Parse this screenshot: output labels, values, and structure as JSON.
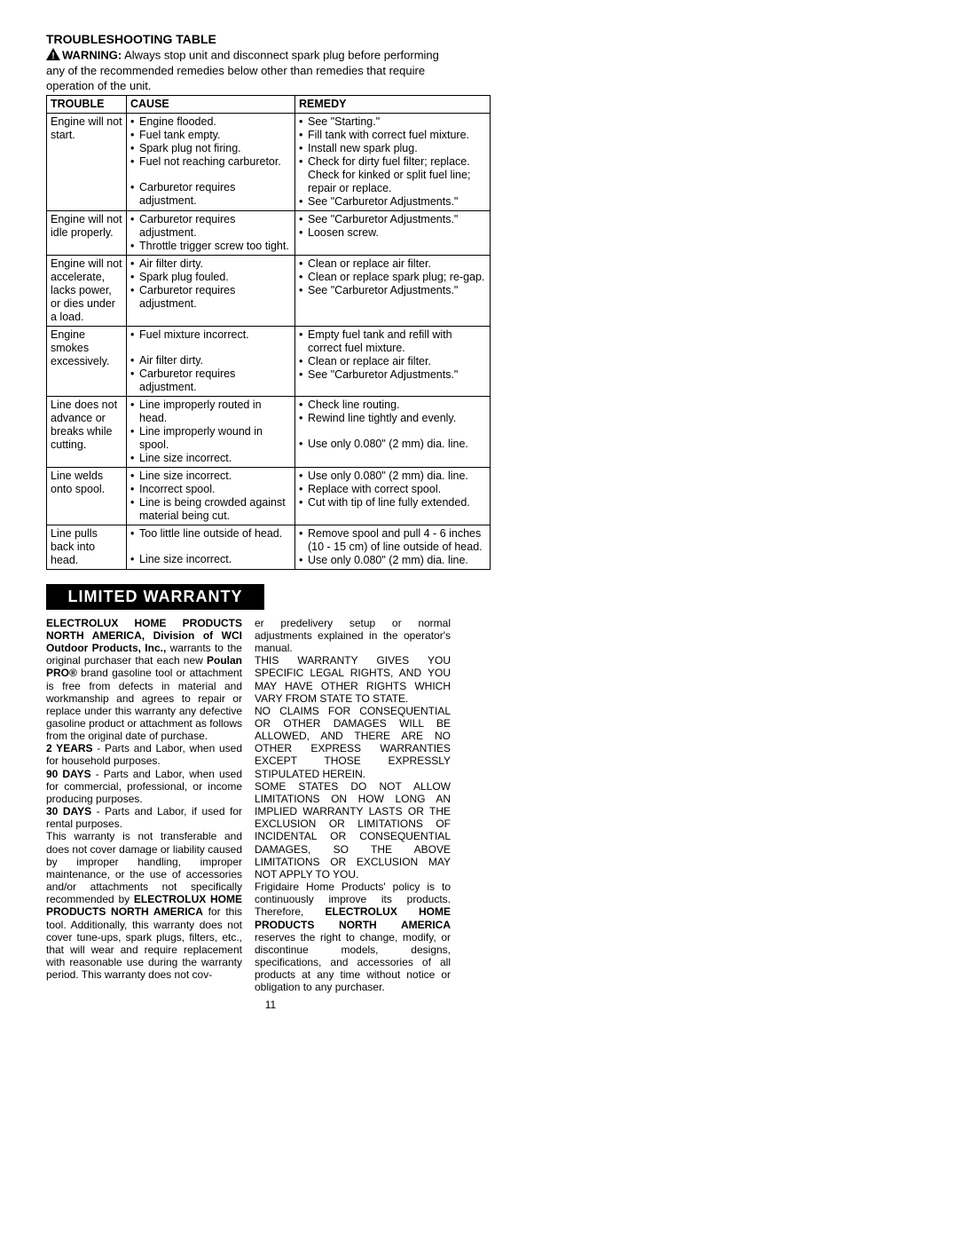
{
  "troubleshoot": {
    "title": "TROUBLESHOOTING TABLE",
    "warning_label": "WARNING:",
    "warning_text": "Always stop unit and disconnect spark plug before performing any of the recommended remedies below other than remedies that require operation of the unit.",
    "headers": {
      "trouble": "TROUBLE",
      "cause": "CAUSE",
      "remedy": "REMEDY"
    },
    "rows": [
      {
        "trouble": "Engine will not start.",
        "cause": [
          "Engine flooded.",
          "Fuel tank empty.",
          "Spark plug not firing.",
          "Fuel not reaching carburetor.",
          "Carburetor requires adjustment."
        ],
        "cause_spacer_after": 3,
        "remedy": [
          "See \"Starting.\"",
          "Fill tank with correct fuel mixture.",
          "Install new spark plug.",
          "Check for dirty fuel filter; replace. Check for kinked or split fuel line; repair or replace.",
          "See \"Carburetor Adjustments.\""
        ]
      },
      {
        "trouble": "Engine will not idle properly.",
        "cause": [
          "Carburetor requires adjustment.",
          "Throttle trigger screw too tight."
        ],
        "remedy": [
          "See \"Carburetor Adjustments.\"",
          "Loosen screw."
        ]
      },
      {
        "trouble": "Engine will not accelerate, lacks power, or dies under a load.",
        "cause": [
          "Air filter dirty.",
          "Spark plug fouled.",
          "Carburetor requires adjustment."
        ],
        "remedy": [
          "Clean or replace air filter.",
          "Clean or replace spark plug; re-gap.",
          "See \"Carburetor Adjustments.\""
        ]
      },
      {
        "trouble": "Engine smokes excessively.",
        "cause": [
          "Fuel mixture incorrect.",
          "Air filter dirty.",
          "Carburetor requires adjustment."
        ],
        "cause_spacer_after": 0,
        "remedy": [
          "Empty fuel tank and refill with correct fuel mixture.",
          "Clean or replace air filter.",
          "See \"Carburetor Adjustments.\""
        ]
      },
      {
        "trouble": "Line does not advance or breaks while cutting.",
        "cause": [
          "Line improperly routed in head.",
          "Line improperly wound in spool.",
          "Line size incorrect."
        ],
        "remedy": [
          "Check line routing.",
          "Rewind line tightly and evenly.",
          "Use only 0.080\" (2 mm) dia. line."
        ],
        "remedy_spacer_after": 1
      },
      {
        "trouble": "Line welds onto spool.",
        "cause": [
          "Line size incorrect.",
          "Incorrect spool.",
          "Line is being crowded against material being cut."
        ],
        "remedy": [
          "Use only 0.080\" (2 mm) dia. line.",
          "Replace with correct spool.",
          "Cut with tip of line fully extended."
        ]
      },
      {
        "trouble": "Line pulls back into head.",
        "cause": [
          "Too little line outside of head.",
          "Line size incorrect."
        ],
        "cause_spacer_after": 0,
        "remedy": [
          "Remove spool and pull 4 - 6 inches (10 - 15 cm) of line outside of head.",
          "Use only 0.080\" (2 mm) dia. line."
        ]
      }
    ]
  },
  "warranty": {
    "banner": "LIMITED WARRANTY",
    "col1_parts": [
      {
        "b": true,
        "t": "ELECTROLUX HOME PRODUCTS NORTH AMERICA, Division of WCI Outdoor Products, Inc.,"
      },
      {
        "b": false,
        "t": " warrants to the original purchaser that each new "
      },
      {
        "b": true,
        "t": "Poulan PRO®"
      },
      {
        "b": false,
        "t": " brand gasoline tool or attachment is free from defects in material and workmanship and agrees to repair or replace under this warranty any defective gasoline product or attachment as follows from the original date of purchase."
      },
      {
        "br": true
      },
      {
        "b": true,
        "t": "2 YEARS"
      },
      {
        "b": false,
        "t": " - Parts and Labor, when used for household purposes."
      },
      {
        "br": true
      },
      {
        "b": true,
        "t": "90 DAYS"
      },
      {
        "b": false,
        "t": " - Parts and Labor, when used for commercial, professional, or income producing purposes."
      },
      {
        "br": true
      },
      {
        "b": true,
        "t": "30 DAYS"
      },
      {
        "b": false,
        "t": " - Parts and Labor, if used for rental purposes."
      },
      {
        "br": true
      },
      {
        "b": false,
        "t": "This warranty is not transferable and does not cover damage or liability caused by improper handling, improper maintenance, or the use of accessories and/or attachments not specifically recommended by "
      },
      {
        "b": true,
        "t": "ELECTROLUX HOME PRODUCTS NORTH AMERICA"
      },
      {
        "b": false,
        "t": " for this tool. Additionally, this warranty does not cover tune-ups, spark plugs, filters, etc., that will wear and require replacement with reasonable use during the warranty period. This warranty does not cov-"
      }
    ],
    "col2_parts": [
      {
        "b": false,
        "t": "er predelivery setup or normal adjustments explained in the operator's manual."
      },
      {
        "br": true
      },
      {
        "b": false,
        "t": "THIS WARRANTY GIVES YOU SPECIFIC LEGAL RIGHTS, AND YOU MAY HAVE OTHER RIGHTS WHICH VARY FROM STATE TO STATE."
      },
      {
        "br": true
      },
      {
        "b": false,
        "t": "NO CLAIMS FOR CONSEQUENTIAL OR OTHER DAMAGES WILL BE ALLOWED, AND THERE ARE NO OTHER EXPRESS WARRANTIES EXCEPT THOSE EXPRESSLY STIPULATED HEREIN."
      },
      {
        "br": true
      },
      {
        "b": false,
        "t": "SOME STATES DO NOT ALLOW LIMITATIONS ON HOW LONG AN IMPLIED WARRANTY LASTS OR THE EXCLUSION OR LIMITATIONS OF INCIDENTAL OR CONSEQUENTIAL DAMAGES, SO THE ABOVE LIMITATIONS OR EXCLUSION MAY NOT APPLY TO YOU."
      },
      {
        "br": true
      },
      {
        "b": false,
        "t": "Frigidaire Home Products' policy is to continuously improve its products. Therefore, "
      },
      {
        "b": true,
        "t": "ELECTROLUX HOME PRODUCTS NORTH AMERICA"
      },
      {
        "b": false,
        "t": " reserves the right to change, modify, or discontinue models, designs, specifications, and accessories of all products at any time without notice or obligation to any purchaser."
      }
    ]
  },
  "page_number": "11"
}
